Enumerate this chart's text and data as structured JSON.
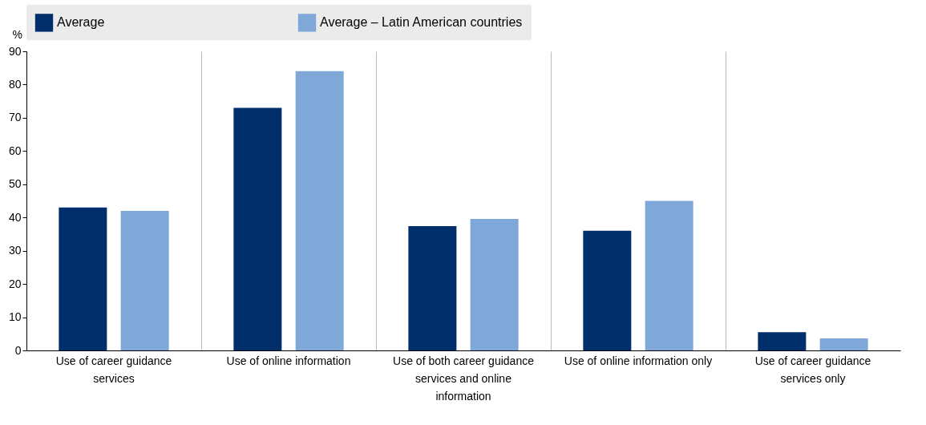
{
  "chart_data": {
    "type": "bar",
    "ylabel": "%",
    "categories": [
      "Use of career guidance services",
      "Use of online information",
      "Use of both career guidance services and online information",
      "Use of online information only",
      "Use of career guidance services only"
    ],
    "series": [
      {
        "name": "Average",
        "color": "#002f6c",
        "values": [
          43,
          73,
          37.4,
          36,
          5.5
        ]
      },
      {
        "name": "Average – Latin American countries",
        "color": "#7fa8d9",
        "values": [
          42,
          84,
          39.6,
          45,
          3.6
        ]
      }
    ],
    "ylim": [
      0,
      90
    ],
    "yticks": [
      0,
      10,
      20,
      30,
      40,
      50,
      60,
      70,
      80,
      90
    ],
    "grid": "x",
    "legend": "top"
  }
}
